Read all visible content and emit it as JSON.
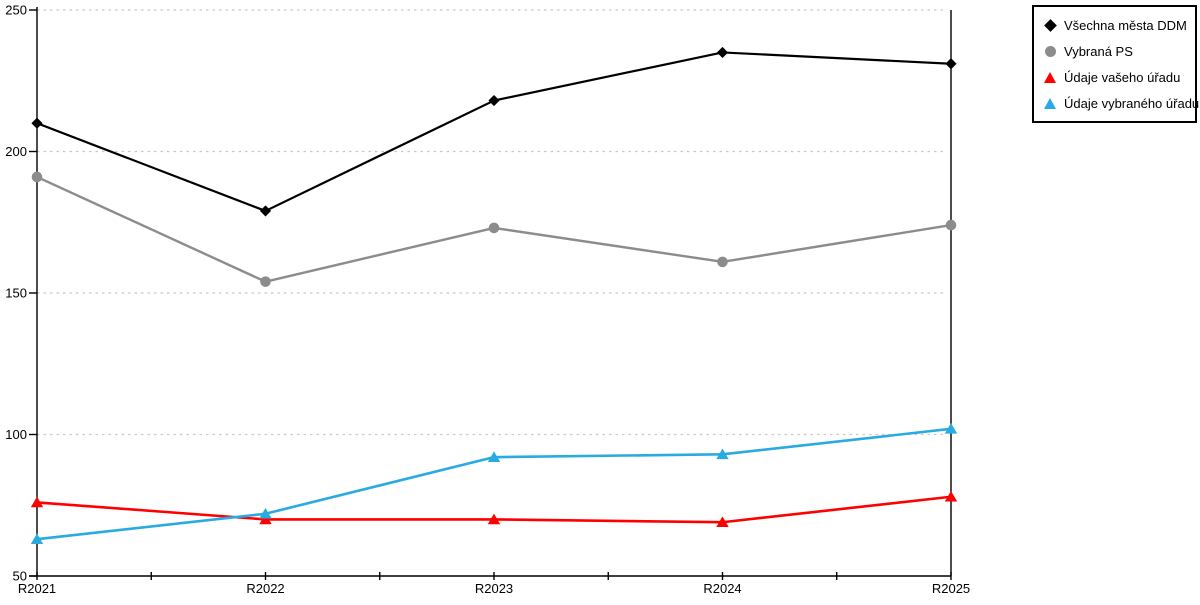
{
  "chart_data": {
    "type": "line",
    "title": "",
    "xlabel": "",
    "ylabel": "",
    "categories": [
      "R2021",
      "R2022",
      "R2023",
      "R2024",
      "R2025"
    ],
    "series": [
      {
        "name": "Všechna města DDM",
        "marker": "diamond",
        "color": "#000000",
        "values": [
          210,
          179,
          218,
          235,
          231
        ]
      },
      {
        "name": "Vybraná PS",
        "marker": "circle",
        "color": "#8c8c8c",
        "values": [
          191,
          154,
          173,
          161,
          174
        ]
      },
      {
        "name": "Údaje vašeho úřadu",
        "marker": "triangle",
        "color": "#ff0000",
        "values": [
          76,
          70,
          70,
          69,
          78
        ]
      },
      {
        "name": "Údaje vybraného úřadu",
        "marker": "triangle",
        "color": "#29abe2",
        "values": [
          63,
          72,
          92,
          93,
          102
        ]
      }
    ],
    "ylim": [
      50,
      250
    ],
    "yticks": [
      50,
      100,
      150,
      200,
      250
    ],
    "grid": "horizontal-dotted",
    "legend_position": "top-right"
  },
  "colors": {
    "background": "#ffffff",
    "axis": "#000000",
    "gridline": "#c8c8c8",
    "text": "#000000"
  }
}
